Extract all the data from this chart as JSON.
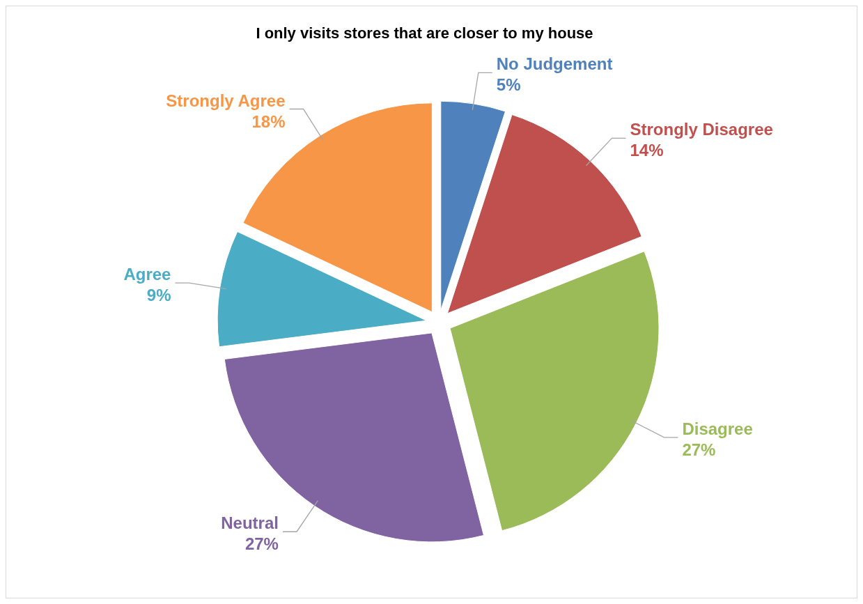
{
  "chart_data": {
    "type": "pie",
    "title": "I only visits stores that are closer to my house",
    "categories": [
      "No Judgement",
      "Strongly Disagree",
      "Disagree",
      "Neutral",
      "Agree",
      "Strongly Agree"
    ],
    "values": [
      5,
      14,
      27,
      27,
      9,
      18
    ],
    "colors": [
      "#4f81bd",
      "#c0504d",
      "#9bbb59",
      "#8064a2",
      "#4bacc6",
      "#f79646"
    ],
    "value_labels": [
      "5%",
      "14%",
      "27%",
      "27%",
      "9%",
      "18%"
    ]
  }
}
